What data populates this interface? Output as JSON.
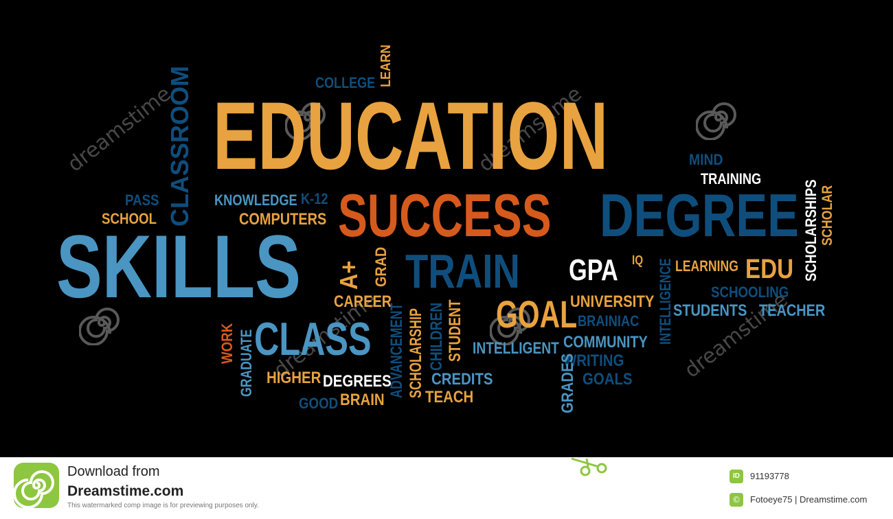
{
  "colors": {
    "orange": "#e8a23f",
    "lightblue": "#4a95c2",
    "navy": "#0f4e7c",
    "rust": "#d65a1c",
    "white": "#ffffff",
    "background": "#000000",
    "brand_green": "#8dc63f"
  },
  "words": [
    {
      "text": "EDUCATION",
      "color": "orange",
      "name": "word-education"
    },
    {
      "text": "SUCCESS",
      "color": "rust",
      "name": "word-success"
    },
    {
      "text": "DEGREE",
      "color": "navy",
      "name": "word-degree"
    },
    {
      "text": "SKILLS",
      "color": "lightblue",
      "name": "word-skills"
    },
    {
      "text": "CLASSROOM",
      "color": "navy",
      "name": "word-classroom"
    },
    {
      "text": "TRAIN",
      "color": "navy",
      "name": "word-train"
    },
    {
      "text": "CLASS",
      "color": "lightblue",
      "name": "word-class"
    },
    {
      "text": "GOAL",
      "color": "orange",
      "name": "word-goal"
    },
    {
      "text": "GPA",
      "color": "white",
      "name": "word-gpa"
    },
    {
      "text": "EDU",
      "color": "orange",
      "name": "word-edu"
    },
    {
      "text": "COLLEGE",
      "color": "navy",
      "name": "word-college"
    },
    {
      "text": "LEARN",
      "color": "orange",
      "name": "word-learn"
    },
    {
      "text": "MIND",
      "color": "navy",
      "name": "word-mind"
    },
    {
      "text": "TRAINING",
      "color": "white",
      "name": "word-training"
    },
    {
      "text": "SCHOLARSHIPS",
      "color": "white",
      "name": "word-scholarships"
    },
    {
      "text": "SCHOLAR",
      "color": "orange",
      "name": "word-scholar"
    },
    {
      "text": "PASS",
      "color": "navy",
      "name": "word-pass"
    },
    {
      "text": "SCHOOL",
      "color": "orange",
      "name": "word-school"
    },
    {
      "text": "KNOWLEDGE",
      "color": "lightblue",
      "name": "word-knowledge"
    },
    {
      "text": "K-12",
      "color": "navy",
      "name": "word-k12"
    },
    {
      "text": "COMPUTERS",
      "color": "orange",
      "name": "word-computers"
    },
    {
      "text": "A+",
      "color": "orange",
      "name": "word-aplus"
    },
    {
      "text": "GRAD",
      "color": "orange",
      "name": "word-grad"
    },
    {
      "text": "IQ",
      "color": "orange",
      "name": "word-iq"
    },
    {
      "text": "LEARNING",
      "color": "orange",
      "name": "word-learning"
    },
    {
      "text": "INTELLIGENCE",
      "color": "navy",
      "name": "word-intelligence"
    },
    {
      "text": "SCHOOLING",
      "color": "navy",
      "name": "word-schooling"
    },
    {
      "text": "STUDENTS",
      "color": "lightblue",
      "name": "word-students"
    },
    {
      "text": "TEACHER",
      "color": "lightblue",
      "name": "word-teacher"
    },
    {
      "text": "UNIVERSITY",
      "color": "orange",
      "name": "word-university"
    },
    {
      "text": "BRAINIAC",
      "color": "navy",
      "name": "word-brainiac"
    },
    {
      "text": "COMMUNITY",
      "color": "lightblue",
      "name": "word-community"
    },
    {
      "text": "WRITING",
      "color": "navy",
      "name": "word-writing"
    },
    {
      "text": "GOALS",
      "color": "navy",
      "name": "word-goals"
    },
    {
      "text": "INTELLIGENT",
      "color": "lightblue",
      "name": "word-intelligent"
    },
    {
      "text": "GRADES",
      "color": "lightblue",
      "name": "word-grades"
    },
    {
      "text": "CAREER",
      "color": "orange",
      "name": "word-career"
    },
    {
      "text": "ADVANCEMENT",
      "color": "navy",
      "name": "word-advancement"
    },
    {
      "text": "SCHOLARSHIP",
      "color": "orange",
      "name": "word-scholarship"
    },
    {
      "text": "CHILDREN",
      "color": "navy",
      "name": "word-children"
    },
    {
      "text": "STUDENT",
      "color": "orange",
      "name": "word-student"
    },
    {
      "text": "CREDITS",
      "color": "lightblue",
      "name": "word-credits"
    },
    {
      "text": "TEACH",
      "color": "orange",
      "name": "word-teach"
    },
    {
      "text": "WORK",
      "color": "rust",
      "name": "word-work"
    },
    {
      "text": "GRADUATE",
      "color": "lightblue",
      "name": "word-graduate"
    },
    {
      "text": "HIGHER",
      "color": "orange",
      "name": "word-higher"
    },
    {
      "text": "DEGREES",
      "color": "white",
      "name": "word-degrees"
    },
    {
      "text": "GOOD",
      "color": "navy",
      "name": "word-good"
    },
    {
      "text": "BRAIN",
      "color": "orange",
      "name": "word-brain"
    }
  ],
  "watermark": {
    "text": "dreamstime"
  },
  "footer": {
    "download_line1": "Download from",
    "download_line2": "Dreamstime.com",
    "download_line3": "This watermarked comp image is for previewing purposes only.",
    "id_badge": "ID",
    "id_value": "91193778",
    "copyright_symbol": "©",
    "credit": "Fotoeye75 | Dreamstime.com"
  }
}
